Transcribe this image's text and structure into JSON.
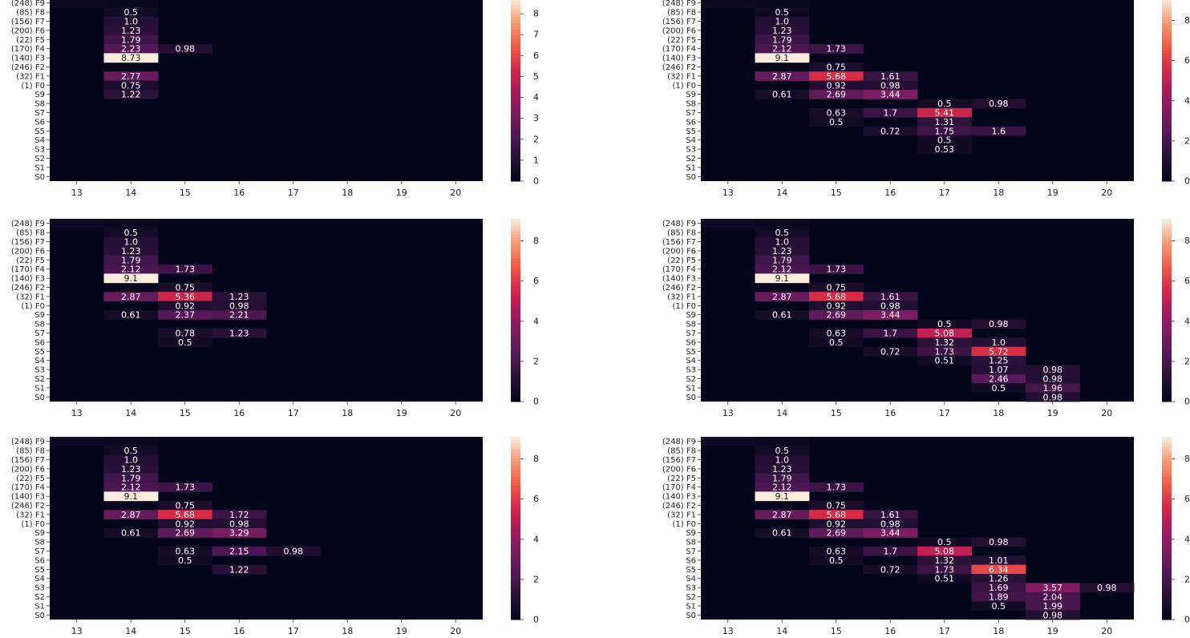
{
  "chart_data": {
    "type": "heatmap",
    "colormap": "rocket",
    "figure_layout": "3 rows x 2 columns",
    "x_categories": [
      "13",
      "14",
      "15",
      "16",
      "17",
      "18",
      "19",
      "20"
    ],
    "y_categories": [
      "(248) F9",
      "(85) F8",
      "(156) F7",
      "(200) F6",
      "(22) F5",
      "(170) F4",
      "(140) F3",
      "(246) F2",
      "(32) F1",
      "(1) F0",
      "S9",
      "S8",
      "S7",
      "S6",
      "S5",
      "S4",
      "S3",
      "S2",
      "S1",
      "S0"
    ],
    "panels": [
      {
        "vmax": 8.73,
        "colorbar_ticks": [
          "0",
          "1",
          "2",
          "3",
          "4",
          "5",
          "6",
          "7",
          "8"
        ],
        "cells": [
          {
            "y": 1,
            "x": 1,
            "label": "0.5"
          },
          {
            "y": 2,
            "x": 1,
            "label": "1.0"
          },
          {
            "y": 3,
            "x": 1,
            "label": "1.23"
          },
          {
            "y": 4,
            "x": 1,
            "label": "1.79"
          },
          {
            "y": 5,
            "x": 1,
            "label": "2.23"
          },
          {
            "y": 5,
            "x": 2,
            "label": "0.98"
          },
          {
            "y": 6,
            "x": 1,
            "label": "8.73"
          },
          {
            "y": 8,
            "x": 1,
            "label": "2.77"
          },
          {
            "y": 9,
            "x": 1,
            "label": "0.75"
          },
          {
            "y": 10,
            "x": 1,
            "label": "1.22"
          }
        ]
      },
      {
        "vmax": 9.1,
        "colorbar_ticks": [
          "0",
          "2",
          "4",
          "6",
          "8"
        ],
        "cells": [
          {
            "y": 1,
            "x": 1,
            "label": "0.5"
          },
          {
            "y": 2,
            "x": 1,
            "label": "1.0"
          },
          {
            "y": 3,
            "x": 1,
            "label": "1.23"
          },
          {
            "y": 4,
            "x": 1,
            "label": "1.79"
          },
          {
            "y": 5,
            "x": 1,
            "label": "2.12"
          },
          {
            "y": 5,
            "x": 2,
            "label": "1.73"
          },
          {
            "y": 6,
            "x": 1,
            "label": "9.1"
          },
          {
            "y": 7,
            "x": 2,
            "label": "0.75"
          },
          {
            "y": 8,
            "x": 1,
            "label": "2.87"
          },
          {
            "y": 8,
            "x": 2,
            "label": "5.68"
          },
          {
            "y": 8,
            "x": 3,
            "label": "1.61"
          },
          {
            "y": 9,
            "x": 2,
            "label": "0.92"
          },
          {
            "y": 9,
            "x": 3,
            "label": "0.98"
          },
          {
            "y": 10,
            "x": 1,
            "label": "0.61"
          },
          {
            "y": 10,
            "x": 2,
            "label": "2.69"
          },
          {
            "y": 10,
            "x": 3,
            "label": "3.44"
          },
          {
            "y": 11,
            "x": 4,
            "label": "0.5"
          },
          {
            "y": 11,
            "x": 5,
            "label": "0.98"
          },
          {
            "y": 12,
            "x": 2,
            "label": "0.63"
          },
          {
            "y": 12,
            "x": 3,
            "label": "1.7"
          },
          {
            "y": 12,
            "x": 4,
            "label": "5.41"
          },
          {
            "y": 13,
            "x": 2,
            "label": "0.5"
          },
          {
            "y": 13,
            "x": 4,
            "label": "1.31"
          },
          {
            "y": 14,
            "x": 3,
            "label": "0.72"
          },
          {
            "y": 14,
            "x": 4,
            "label": "1.75"
          },
          {
            "y": 14,
            "x": 5,
            "label": "1.6"
          },
          {
            "y": 15,
            "x": 4,
            "label": "0.5"
          },
          {
            "y": 16,
            "x": 4,
            "label": "0.53"
          }
        ]
      },
      {
        "vmax": 9.1,
        "colorbar_ticks": [
          "0",
          "2",
          "4",
          "6",
          "8"
        ],
        "cells": [
          {
            "y": 1,
            "x": 1,
            "label": "0.5"
          },
          {
            "y": 2,
            "x": 1,
            "label": "1.0"
          },
          {
            "y": 3,
            "x": 1,
            "label": "1.23"
          },
          {
            "y": 4,
            "x": 1,
            "label": "1.79"
          },
          {
            "y": 5,
            "x": 1,
            "label": "2.12"
          },
          {
            "y": 5,
            "x": 2,
            "label": "1.73"
          },
          {
            "y": 6,
            "x": 1,
            "label": "9.1"
          },
          {
            "y": 7,
            "x": 2,
            "label": "0.75"
          },
          {
            "y": 8,
            "x": 1,
            "label": "2.87"
          },
          {
            "y": 8,
            "x": 2,
            "label": "5.36"
          },
          {
            "y": 8,
            "x": 3,
            "label": "1.23"
          },
          {
            "y": 9,
            "x": 2,
            "label": "0.92"
          },
          {
            "y": 9,
            "x": 3,
            "label": "0.98"
          },
          {
            "y": 10,
            "x": 1,
            "label": "0.61"
          },
          {
            "y": 10,
            "x": 2,
            "label": "2.37"
          },
          {
            "y": 10,
            "x": 3,
            "label": "2.21"
          },
          {
            "y": 12,
            "x": 2,
            "label": "0.78"
          },
          {
            "y": 12,
            "x": 3,
            "label": "1.23"
          },
          {
            "y": 13,
            "x": 2,
            "label": "0.5"
          }
        ]
      },
      {
        "vmax": 9.1,
        "colorbar_ticks": [
          "0",
          "2",
          "4",
          "6",
          "8"
        ],
        "cells": [
          {
            "y": 1,
            "x": 1,
            "label": "0.5"
          },
          {
            "y": 2,
            "x": 1,
            "label": "1.0"
          },
          {
            "y": 3,
            "x": 1,
            "label": "1.23"
          },
          {
            "y": 4,
            "x": 1,
            "label": "1.79"
          },
          {
            "y": 5,
            "x": 1,
            "label": "2.12"
          },
          {
            "y": 5,
            "x": 2,
            "label": "1.73"
          },
          {
            "y": 6,
            "x": 1,
            "label": "9.1"
          },
          {
            "y": 7,
            "x": 2,
            "label": "0.75"
          },
          {
            "y": 8,
            "x": 1,
            "label": "2.87"
          },
          {
            "y": 8,
            "x": 2,
            "label": "5.68"
          },
          {
            "y": 8,
            "x": 3,
            "label": "1.61"
          },
          {
            "y": 9,
            "x": 2,
            "label": "0.92"
          },
          {
            "y": 9,
            "x": 3,
            "label": "0.98"
          },
          {
            "y": 10,
            "x": 1,
            "label": "0.61"
          },
          {
            "y": 10,
            "x": 2,
            "label": "2.69"
          },
          {
            "y": 10,
            "x": 3,
            "label": "3.44"
          },
          {
            "y": 11,
            "x": 4,
            "label": "0.5"
          },
          {
            "y": 11,
            "x": 5,
            "label": "0.98"
          },
          {
            "y": 12,
            "x": 2,
            "label": "0.63"
          },
          {
            "y": 12,
            "x": 3,
            "label": "1.7"
          },
          {
            "y": 12,
            "x": 4,
            "label": "5.08"
          },
          {
            "y": 13,
            "x": 2,
            "label": "0.5"
          },
          {
            "y": 13,
            "x": 4,
            "label": "1.32"
          },
          {
            "y": 13,
            "x": 5,
            "label": "1.0"
          },
          {
            "y": 14,
            "x": 3,
            "label": "0.72"
          },
          {
            "y": 14,
            "x": 4,
            "label": "1.73"
          },
          {
            "y": 14,
            "x": 5,
            "label": "5.72"
          },
          {
            "y": 15,
            "x": 4,
            "label": "0.51"
          },
          {
            "y": 15,
            "x": 5,
            "label": "1.25"
          },
          {
            "y": 16,
            "x": 5,
            "label": "1.07"
          },
          {
            "y": 16,
            "x": 6,
            "label": "0.98"
          },
          {
            "y": 17,
            "x": 5,
            "label": "2.46"
          },
          {
            "y": 17,
            "x": 6,
            "label": "0.98"
          },
          {
            "y": 18,
            "x": 5,
            "label": "0.5"
          },
          {
            "y": 18,
            "x": 6,
            "label": "1.96"
          },
          {
            "y": 19,
            "x": 6,
            "label": "0.98"
          }
        ]
      },
      {
        "vmax": 9.1,
        "colorbar_ticks": [
          "0",
          "2",
          "4",
          "6",
          "8"
        ],
        "cells": [
          {
            "y": 1,
            "x": 1,
            "label": "0.5"
          },
          {
            "y": 2,
            "x": 1,
            "label": "1.0"
          },
          {
            "y": 3,
            "x": 1,
            "label": "1.23"
          },
          {
            "y": 4,
            "x": 1,
            "label": "1.79"
          },
          {
            "y": 5,
            "x": 1,
            "label": "2.12"
          },
          {
            "y": 5,
            "x": 2,
            "label": "1.73"
          },
          {
            "y": 6,
            "x": 1,
            "label": "9.1"
          },
          {
            "y": 7,
            "x": 2,
            "label": "0.75"
          },
          {
            "y": 8,
            "x": 1,
            "label": "2.87"
          },
          {
            "y": 8,
            "x": 2,
            "label": "5.68"
          },
          {
            "y": 8,
            "x": 3,
            "label": "1.72"
          },
          {
            "y": 9,
            "x": 2,
            "label": "0.92"
          },
          {
            "y": 9,
            "x": 3,
            "label": "0.98"
          },
          {
            "y": 10,
            "x": 1,
            "label": "0.61"
          },
          {
            "y": 10,
            "x": 2,
            "label": "2.69"
          },
          {
            "y": 10,
            "x": 3,
            "label": "3.29"
          },
          {
            "y": 12,
            "x": 2,
            "label": "0.63"
          },
          {
            "y": 12,
            "x": 3,
            "label": "2.15"
          },
          {
            "y": 12,
            "x": 4,
            "label": "0.98"
          },
          {
            "y": 13,
            "x": 2,
            "label": "0.5"
          },
          {
            "y": 14,
            "x": 3,
            "label": "1.22"
          }
        ]
      },
      {
        "vmax": 9.1,
        "colorbar_ticks": [
          "0",
          "2",
          "4",
          "6",
          "8"
        ],
        "cells": [
          {
            "y": 1,
            "x": 1,
            "label": "0.5"
          },
          {
            "y": 2,
            "x": 1,
            "label": "1.0"
          },
          {
            "y": 3,
            "x": 1,
            "label": "1.23"
          },
          {
            "y": 4,
            "x": 1,
            "label": "1.79"
          },
          {
            "y": 5,
            "x": 1,
            "label": "2.12"
          },
          {
            "y": 5,
            "x": 2,
            "label": "1.73"
          },
          {
            "y": 6,
            "x": 1,
            "label": "9.1"
          },
          {
            "y": 7,
            "x": 2,
            "label": "0.75"
          },
          {
            "y": 8,
            "x": 1,
            "label": "2.87"
          },
          {
            "y": 8,
            "x": 2,
            "label": "5.68"
          },
          {
            "y": 8,
            "x": 3,
            "label": "1.61"
          },
          {
            "y": 9,
            "x": 2,
            "label": "0.92"
          },
          {
            "y": 9,
            "x": 3,
            "label": "0.98"
          },
          {
            "y": 10,
            "x": 1,
            "label": "0.61"
          },
          {
            "y": 10,
            "x": 2,
            "label": "2.69"
          },
          {
            "y": 10,
            "x": 3,
            "label": "3.44"
          },
          {
            "y": 11,
            "x": 4,
            "label": "0.5"
          },
          {
            "y": 11,
            "x": 5,
            "label": "0.98"
          },
          {
            "y": 12,
            "x": 2,
            "label": "0.63"
          },
          {
            "y": 12,
            "x": 3,
            "label": "1.7"
          },
          {
            "y": 12,
            "x": 4,
            "label": "5.08"
          },
          {
            "y": 13,
            "x": 2,
            "label": "0.5"
          },
          {
            "y": 13,
            "x": 4,
            "label": "1.32"
          },
          {
            "y": 13,
            "x": 5,
            "label": "1.01"
          },
          {
            "y": 14,
            "x": 3,
            "label": "0.72"
          },
          {
            "y": 14,
            "x": 4,
            "label": "1.73"
          },
          {
            "y": 14,
            "x": 5,
            "label": "6.34"
          },
          {
            "y": 15,
            "x": 4,
            "label": "0.51"
          },
          {
            "y": 15,
            "x": 5,
            "label": "1.26"
          },
          {
            "y": 16,
            "x": 5,
            "label": "1.69"
          },
          {
            "y": 16,
            "x": 6,
            "label": "3.57"
          },
          {
            "y": 16,
            "x": 7,
            "label": "0.98"
          },
          {
            "y": 17,
            "x": 5,
            "label": "1.89"
          },
          {
            "y": 17,
            "x": 6,
            "label": "2.04"
          },
          {
            "y": 18,
            "x": 5,
            "label": "0.5"
          },
          {
            "y": 18,
            "x": 6,
            "label": "1.99"
          },
          {
            "y": 19,
            "x": 6,
            "label": "0.98"
          }
        ]
      }
    ]
  }
}
